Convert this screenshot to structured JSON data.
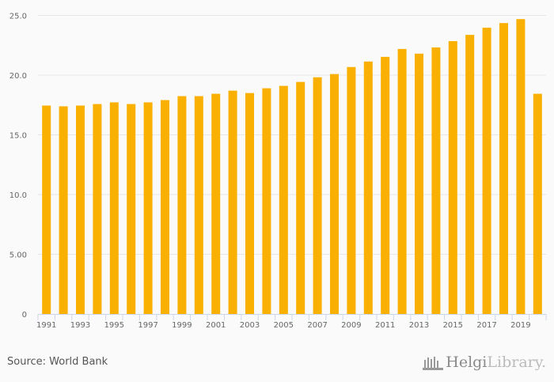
{
  "chart_data": {
    "type": "bar",
    "title": "",
    "xlabel": "",
    "ylabel": "",
    "ylim": [
      0,
      25
    ],
    "yticks": [
      "0",
      "5.00",
      "10.0",
      "15.0",
      "20.0",
      "25.0"
    ],
    "ytick_values": [
      0,
      5,
      10,
      15,
      20,
      25
    ],
    "categories": [
      "1991",
      "1992",
      "1993",
      "1994",
      "1995",
      "1996",
      "1997",
      "1998",
      "1999",
      "2000",
      "2001",
      "2002",
      "2003",
      "2004",
      "2005",
      "2006",
      "2007",
      "2008",
      "2009",
      "2010",
      "2011",
      "2012",
      "2013",
      "2014",
      "2015",
      "2016",
      "2017",
      "2018",
      "2019",
      "2020"
    ],
    "xtick_labels": [
      "1991",
      "1993",
      "1995",
      "1997",
      "1999",
      "2001",
      "2003",
      "2005",
      "2007",
      "2009",
      "2011",
      "2013",
      "2015",
      "2017",
      "2019"
    ],
    "values": [
      17.45,
      17.39,
      17.45,
      17.58,
      17.72,
      17.58,
      17.72,
      17.91,
      18.24,
      18.24,
      18.44,
      18.7,
      18.5,
      18.9,
      19.1,
      19.43,
      19.82,
      20.09,
      20.68,
      21.14,
      21.53,
      22.19,
      21.8,
      22.32,
      22.85,
      23.37,
      23.97,
      24.36,
      24.69,
      18.44
    ],
    "bar_color": "#f9b000",
    "grid": true
  },
  "footer": {
    "source": "Source: World Bank",
    "logo_bold": "Helgi",
    "logo_light": "Library."
  }
}
